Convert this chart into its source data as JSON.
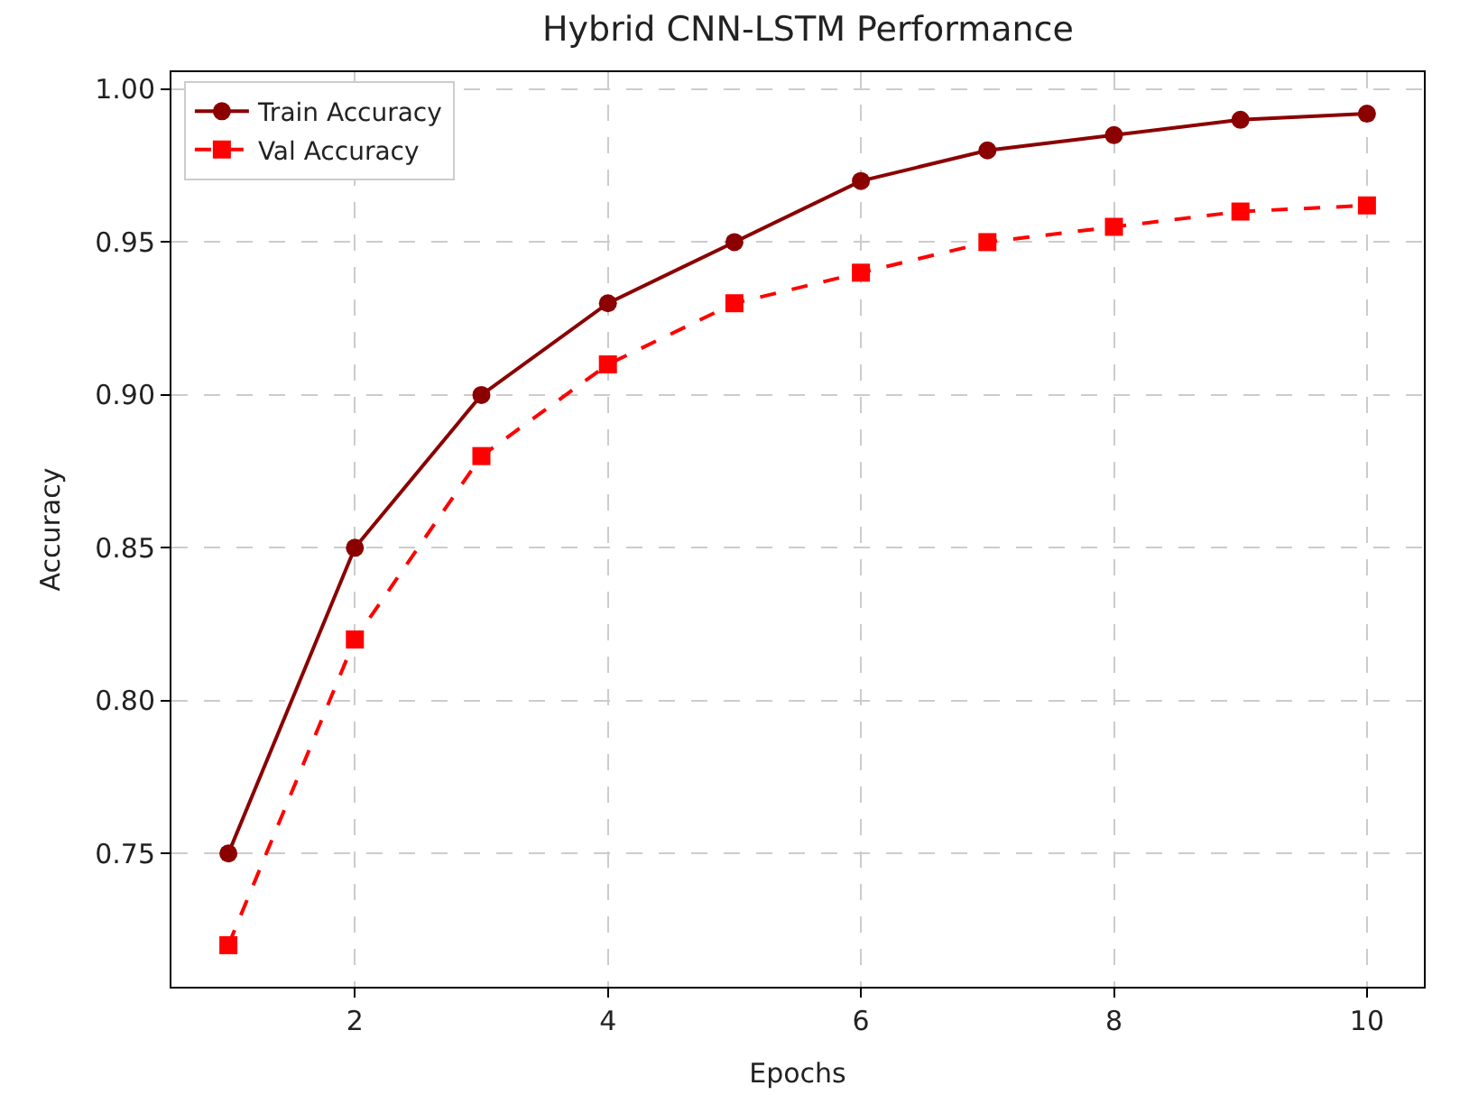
{
  "chart_data": {
    "type": "line",
    "title": "Hybrid CNN-LSTM Performance",
    "xlabel": "Epochs",
    "ylabel": "Accuracy",
    "x": [
      1,
      2,
      3,
      4,
      5,
      6,
      7,
      8,
      9,
      10
    ],
    "series": [
      {
        "name": "Train Accuracy",
        "color": "#8b0000",
        "marker": "circle",
        "line_style": "solid",
        "values": [
          0.75,
          0.85,
          0.9,
          0.93,
          0.95,
          0.97,
          0.98,
          0.985,
          0.99,
          0.992
        ]
      },
      {
        "name": "Val Accuracy",
        "color": "#ff0000",
        "marker": "square",
        "line_style": "dashed",
        "values": [
          0.72,
          0.82,
          0.88,
          0.91,
          0.93,
          0.94,
          0.95,
          0.955,
          0.96,
          0.962
        ]
      }
    ],
    "xlim": [
      0.55,
      10.45
    ],
    "xticks": [
      2,
      4,
      6,
      8,
      10
    ],
    "ylim": [
      0.7064,
      1.0056
    ],
    "yticks": [
      {
        "value": 0.75,
        "label": "0.75"
      },
      {
        "value": 0.8,
        "label": "0.80"
      },
      {
        "value": 0.85,
        "label": "0.85"
      },
      {
        "value": 0.9,
        "label": "0.90"
      },
      {
        "value": 0.95,
        "label": "0.95"
      },
      {
        "value": 1.0,
        "label": "1.00"
      }
    ],
    "grid": true,
    "legend": "top left"
  }
}
